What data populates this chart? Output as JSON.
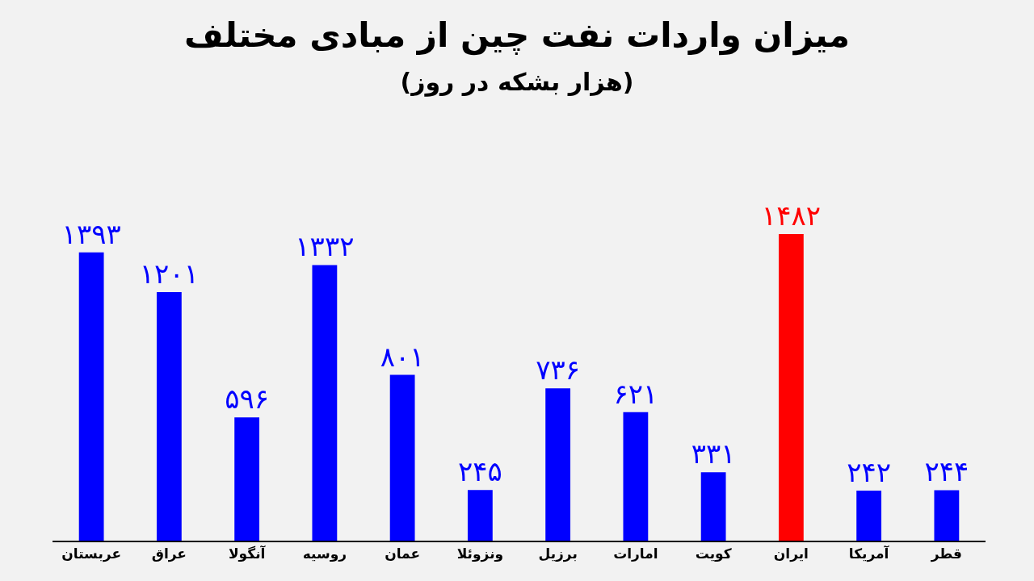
{
  "chart_data": {
    "type": "bar",
    "title": "میزان واردات نفت چین از مبادی مختلف",
    "subtitle": "(هزار بشکه در روز)",
    "categories": [
      "عربستان",
      "عراق",
      "آنگولا",
      "روسیه",
      "عمان",
      "ونزوئلا",
      "برزیل",
      "امارات",
      "کویت",
      "ایران",
      "آمریکا",
      "قطر"
    ],
    "values": [
      1393,
      1201,
      596,
      1332,
      801,
      245,
      736,
      621,
      331,
      1482,
      242,
      244
    ],
    "value_labels": [
      "۱۳۹۳",
      "۱۲۰۱",
      "۵۹۶",
      "۱۳۳۲",
      "۸۰۱",
      "۲۴۵",
      "۷۳۶",
      "۶۲۱",
      "۳۳۱",
      "۱۴۸۲",
      "۲۴۲",
      "۲۴۴"
    ],
    "colors": [
      "#0000ff",
      "#0000ff",
      "#0000ff",
      "#0000ff",
      "#0000ff",
      "#0000ff",
      "#0000ff",
      "#0000ff",
      "#0000ff",
      "#ff0000",
      "#0000ff",
      "#0000ff"
    ],
    "grid": false,
    "legend": false
  }
}
